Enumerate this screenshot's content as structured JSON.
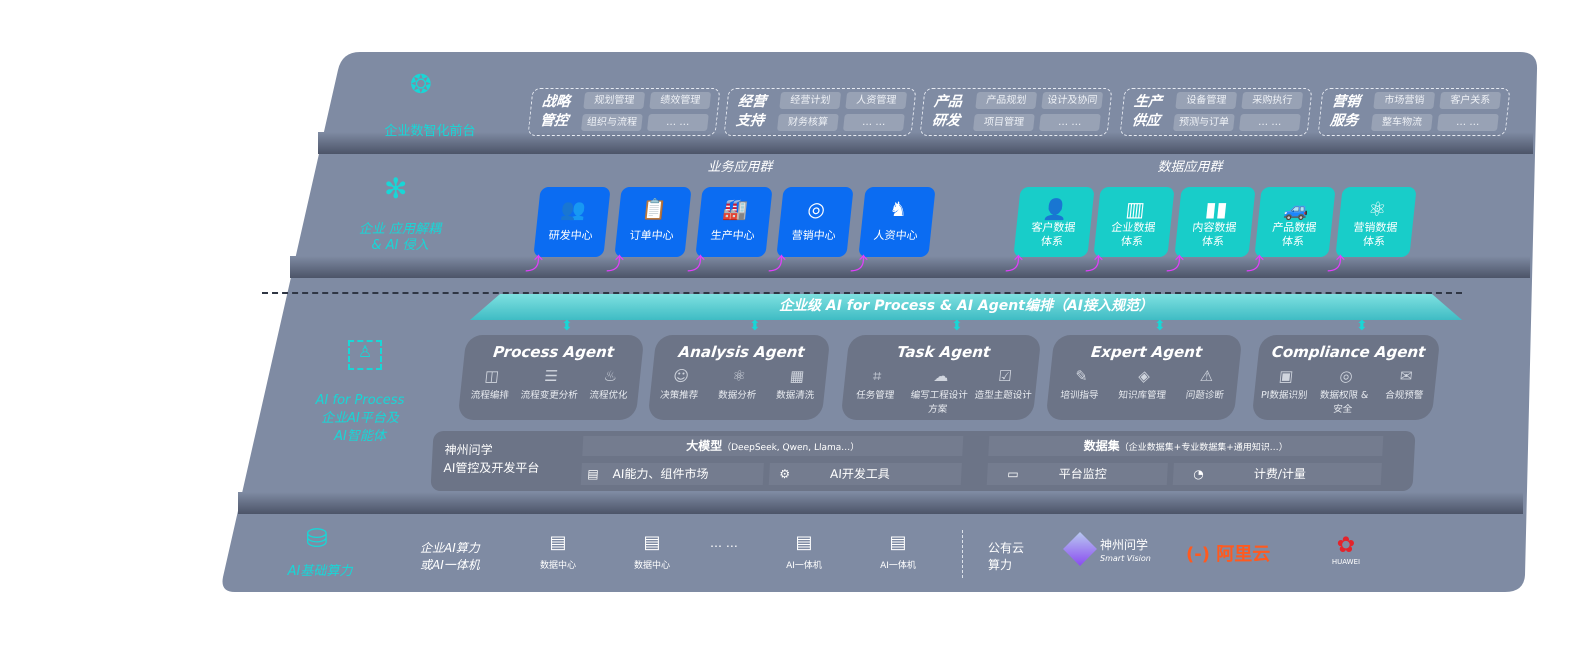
{
  "layers": {
    "front": {
      "label": "企业数智化前台",
      "icon": "brain-icon"
    },
    "apps": {
      "label_line1": "企业 应用解耦",
      "label_line2": "& AI 侵入",
      "icon": "molecule-icon"
    },
    "ai": {
      "label_line1": "AI for Process",
      "label_line2": "企业AI平台及",
      "label_line3": "AI智能体",
      "icon": "user-scan-icon"
    },
    "compute": {
      "label": "AI基础算力",
      "icon": "database-icon"
    }
  },
  "front_groups": [
    {
      "title1": "战略",
      "title2": "管控",
      "items": [
        "规划管理",
        "绩效管理",
        "组织与流程",
        "… …"
      ]
    },
    {
      "title1": "经营",
      "title2": "支持",
      "items": [
        "经营计划",
        "人资管理",
        "财务核算",
        "… …"
      ]
    },
    {
      "title1": "产品",
      "title2": "研发",
      "items": [
        "产品规划",
        "设计及协同",
        "项目管理",
        "… …"
      ]
    },
    {
      "title1": "生产",
      "title2": "供应",
      "items": [
        "设备管理",
        "采购执行",
        "预测与订单",
        "… …"
      ]
    },
    {
      "title1": "营销",
      "title2": "服务",
      "items": [
        "市场营销",
        "客户关系",
        "整车物流",
        "… …"
      ]
    }
  ],
  "business_apps": {
    "title": "业务应用群",
    "items": [
      {
        "label": "研发中心",
        "icon": "team-icon"
      },
      {
        "label": "订单中心",
        "icon": "clipboard-icon"
      },
      {
        "label": "生产中心",
        "icon": "factory-icon"
      },
      {
        "label": "营销中心",
        "icon": "target-icon"
      },
      {
        "label": "人资中心",
        "icon": "person-icon"
      }
    ]
  },
  "data_apps": {
    "title": "数据应用群",
    "items": [
      {
        "l1": "客户数据",
        "l2": "体系",
        "icon": "user-icon"
      },
      {
        "l1": "企业数据",
        "l2": "体系",
        "icon": "building-icon"
      },
      {
        "l1": "内容数据",
        "l2": "体系",
        "icon": "books-icon"
      },
      {
        "l1": "产品数据",
        "l2": "体系",
        "icon": "car-icon"
      },
      {
        "l1": "营销数据",
        "l2": "体系",
        "icon": "atom-icon"
      }
    ]
  },
  "banner": "企业级 AI for Process & AI Agent编排（AI接入规范）",
  "agents": [
    {
      "title": "Process Agent",
      "items": [
        "流程编排",
        "流程变更分析",
        "流程优化"
      ]
    },
    {
      "title": "Analysis Agent",
      "items": [
        "决策推荐",
        "数据分析",
        "数据清洗"
      ]
    },
    {
      "title": "Task Agent",
      "items": [
        "任务管理",
        "编写工程设计方案",
        "造型主题设计"
      ]
    },
    {
      "title": "Expert Agent",
      "items": [
        "培训指导",
        "知识库管理",
        "问题诊断"
      ]
    },
    {
      "title": "Compliance Agent",
      "items": [
        "PI数据识别",
        "数据权限 & 安全",
        "合规预警"
      ]
    }
  ],
  "platform": {
    "name1": "神州问学",
    "name2": "AI管控及开发平台",
    "model_title": "大模型",
    "model_note": "（DeepSeek, Qwen, Llama…）",
    "model_items": [
      "AI能力、组件市场",
      "AI开发工具"
    ],
    "dataset_title": "数据集",
    "dataset_note": "（企业数据集+专业数据集+通用知识…）",
    "dataset_items": [
      "平台监控",
      "计费/计量"
    ]
  },
  "compute": {
    "enterprise_label1": "企业AI算力",
    "enterprise_label2": "或AI一体机",
    "servers": [
      "数据中心",
      "数据中心",
      "AI一体机",
      "AI一体机"
    ],
    "ellipsis": "… …",
    "cloud_label1": "公有云",
    "cloud_label2": "算力",
    "providers": [
      {
        "name": "神州问学",
        "sub": "Smart Vision"
      },
      {
        "name": "阿里云",
        "logo": "(-)"
      },
      {
        "name": "HUAWEI"
      }
    ]
  },
  "colors": {
    "panel": "#7f8ba3",
    "blue_tile": "#0b6cf2",
    "teal_tile": "#18cdc9",
    "accent": "#19d6d6",
    "arrow": "#e040fb",
    "aliyun": "#ff5a1f",
    "huawei": "#e4232b"
  }
}
